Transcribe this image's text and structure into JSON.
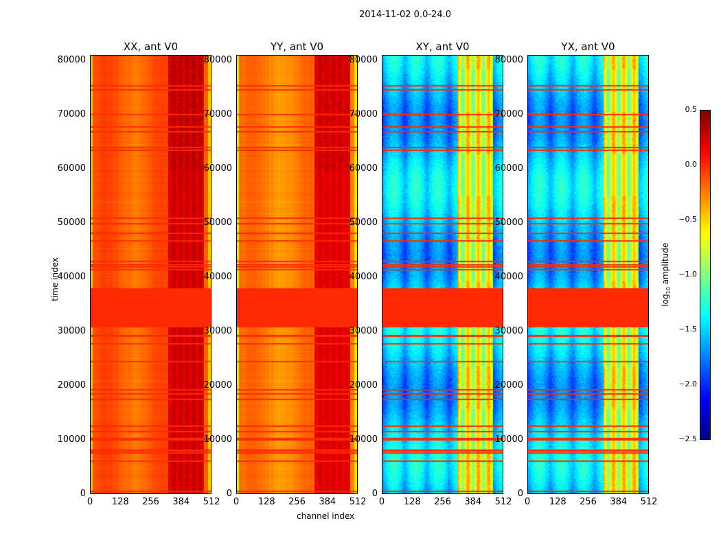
{
  "chart_data": {
    "type": "heatmap",
    "title": "2014-11-02 0.0-24.0",
    "xlabel": "channel index",
    "ylabel": "time index",
    "xlim": [
      0,
      512
    ],
    "ylim": [
      0,
      81000
    ],
    "x_ticks": [
      "0",
      "128",
      "256",
      "384",
      "512"
    ],
    "x_tick_values": [
      0,
      128,
      256,
      384,
      512
    ],
    "y_ticks": [
      "0",
      "10000",
      "20000",
      "30000",
      "40000",
      "50000",
      "60000",
      "70000",
      "80000"
    ],
    "y_tick_values": [
      0,
      10000,
      20000,
      30000,
      40000,
      50000,
      60000,
      70000,
      80000
    ],
    "panels": [
      {
        "title": "XX, ant V0",
        "kind": "auto",
        "base_level": -0.2,
        "rfi_channels": [
          330,
          480
        ],
        "rfi_level": 0.25
      },
      {
        "title": "YY, ant V0",
        "kind": "auto",
        "base_level": -0.3,
        "rfi_channels": [
          330,
          480
        ],
        "rfi_level": 0.2
      },
      {
        "title": "XY, ant V0",
        "kind": "cross",
        "base_level": -1.9,
        "rfi_channels": [
          320,
          470
        ],
        "rfi_level": -0.8
      },
      {
        "title": "YX, ant V0",
        "kind": "cross",
        "base_level": -1.9,
        "rfi_channels": [
          320,
          470
        ],
        "rfi_level": -0.8
      }
    ],
    "flagged_time_ranges": [
      [
        30800,
        38000
      ]
    ],
    "flagged_value": 0.0,
    "flagged_rows": [
      500,
      6000,
      7500,
      8000,
      10000,
      10200,
      11500,
      12500,
      17500,
      18500,
      19200,
      24500,
      27800,
      29200,
      41500,
      42000,
      42300,
      43000,
      46800,
      48200,
      50000,
      51000,
      63500,
      64000,
      67000,
      67800,
      70200,
      74700,
      75500
    ],
    "colorbar": {
      "label": "log",
      "label_sub": "10",
      "label_rest": " amplitude",
      "range": [
        -2.5,
        0.5
      ],
      "ticks": [
        "0.5",
        "0.0",
        "−0.5",
        "−1.0",
        "−1.5",
        "−2.0",
        "−2.5"
      ],
      "tick_values": [
        0.5,
        0.0,
        -0.5,
        -1.0,
        -1.5,
        -2.0,
        -2.5
      ],
      "colormap": "jet"
    }
  }
}
